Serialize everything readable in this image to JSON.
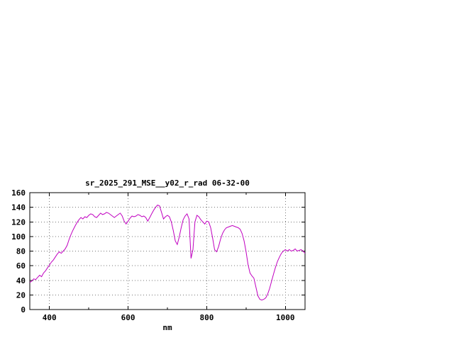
{
  "window": {
    "background_color": "#ffffff"
  },
  "chart_data": {
    "type": "line",
    "title": "sr_2025_291_MSE__y02_r_rad 06-32-00",
    "xlabel": "nm",
    "ylabel": "",
    "xlim": [
      350,
      1050
    ],
    "ylim": [
      0,
      160
    ],
    "xticks_labeled": [
      400,
      600,
      800,
      1000
    ],
    "xticks_minor": [
      500,
      700,
      900
    ],
    "yticks": [
      0,
      20,
      40,
      60,
      80,
      100,
      120,
      140,
      160
    ],
    "grid": true,
    "legend": "none",
    "line_color": "#c000c0",
    "x": [
      350,
      355,
      360,
      365,
      370,
      375,
      380,
      385,
      390,
      395,
      400,
      405,
      410,
      415,
      420,
      425,
      430,
      435,
      440,
      445,
      450,
      455,
      460,
      465,
      470,
      475,
      480,
      485,
      490,
      495,
      500,
      505,
      510,
      515,
      520,
      525,
      530,
      535,
      540,
      545,
      550,
      555,
      560,
      565,
      570,
      575,
      580,
      585,
      590,
      595,
      600,
      605,
      610,
      615,
      620,
      625,
      630,
      635,
      640,
      645,
      650,
      655,
      660,
      665,
      670,
      675,
      680,
      685,
      690,
      695,
      700,
      705,
      710,
      715,
      720,
      725,
      730,
      735,
      740,
      745,
      750,
      755,
      760,
      765,
      770,
      775,
      780,
      785,
      790,
      795,
      800,
      805,
      810,
      815,
      820,
      825,
      830,
      835,
      840,
      845,
      850,
      855,
      860,
      865,
      870,
      875,
      880,
      885,
      890,
      895,
      900,
      905,
      910,
      915,
      920,
      925,
      930,
      935,
      940,
      945,
      950,
      955,
      960,
      965,
      970,
      975,
      980,
      985,
      990,
      995,
      1000,
      1005,
      1010,
      1015,
      1020,
      1025,
      1030,
      1035,
      1040,
      1045,
      1050
    ],
    "values": [
      37,
      39,
      42,
      41,
      44,
      47,
      45,
      50,
      53,
      57,
      61,
      65,
      68,
      72,
      76,
      79,
      77,
      80,
      83,
      88,
      96,
      103,
      109,
      114,
      119,
      123,
      126,
      124,
      127,
      126,
      129,
      131,
      130,
      127,
      126,
      129,
      132,
      130,
      131,
      133,
      132,
      130,
      128,
      126,
      128,
      130,
      132,
      128,
      121,
      117,
      121,
      125,
      128,
      127,
      128,
      130,
      129,
      127,
      128,
      126,
      121,
      126,
      131,
      136,
      140,
      143,
      142,
      133,
      124,
      127,
      129,
      127,
      120,
      108,
      94,
      89,
      99,
      112,
      123,
      128,
      131,
      124,
      70,
      82,
      120,
      129,
      127,
      123,
      120,
      117,
      121,
      120,
      112,
      98,
      82,
      79,
      86,
      96,
      104,
      109,
      112,
      113,
      114,
      115,
      114,
      113,
      112,
      110,
      104,
      94,
      79,
      62,
      50,
      46,
      43,
      31,
      19,
      14,
      13,
      14,
      16,
      21,
      29,
      39,
      49,
      58,
      66,
      72,
      77,
      80,
      82,
      80,
      82,
      80,
      81,
      83,
      80,
      81,
      82,
      80,
      77
    ]
  }
}
